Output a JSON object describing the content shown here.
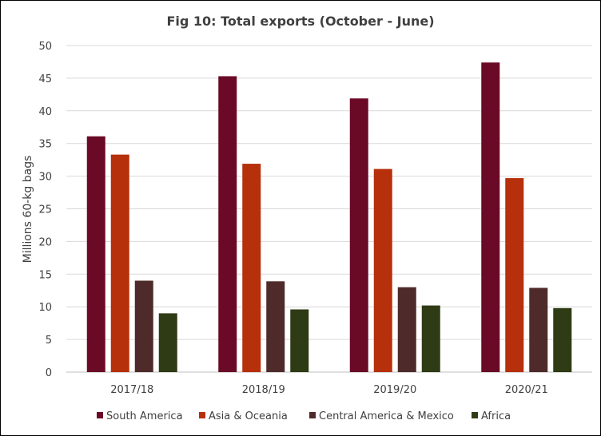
{
  "chart_data": {
    "type": "bar",
    "title": "Fig 10: Total exports (October - June)",
    "ylabel": "Millions 60-kg bags",
    "xlabel": "",
    "ylim": [
      0,
      50
    ],
    "yticks": [
      0,
      5,
      10,
      15,
      20,
      25,
      30,
      35,
      40,
      45,
      50
    ],
    "categories": [
      "2017/18",
      "2018/19",
      "2019/20",
      "2020/21"
    ],
    "grid": true,
    "legend_position": "bottom",
    "series": [
      {
        "name": "South America",
        "color": "#6b0a26",
        "values": [
          36.1,
          45.3,
          41.9,
          47.4
        ]
      },
      {
        "name": "Asia & Oceania",
        "color": "#b5300b",
        "values": [
          33.3,
          31.9,
          31.1,
          29.7
        ]
      },
      {
        "name": "Central America & Mexico",
        "color": "#4e2b2a",
        "values": [
          14.0,
          13.9,
          13.0,
          12.9
        ]
      },
      {
        "name": "Africa",
        "color": "#2f3b14",
        "values": [
          9.0,
          9.6,
          10.2,
          9.8
        ]
      }
    ]
  }
}
